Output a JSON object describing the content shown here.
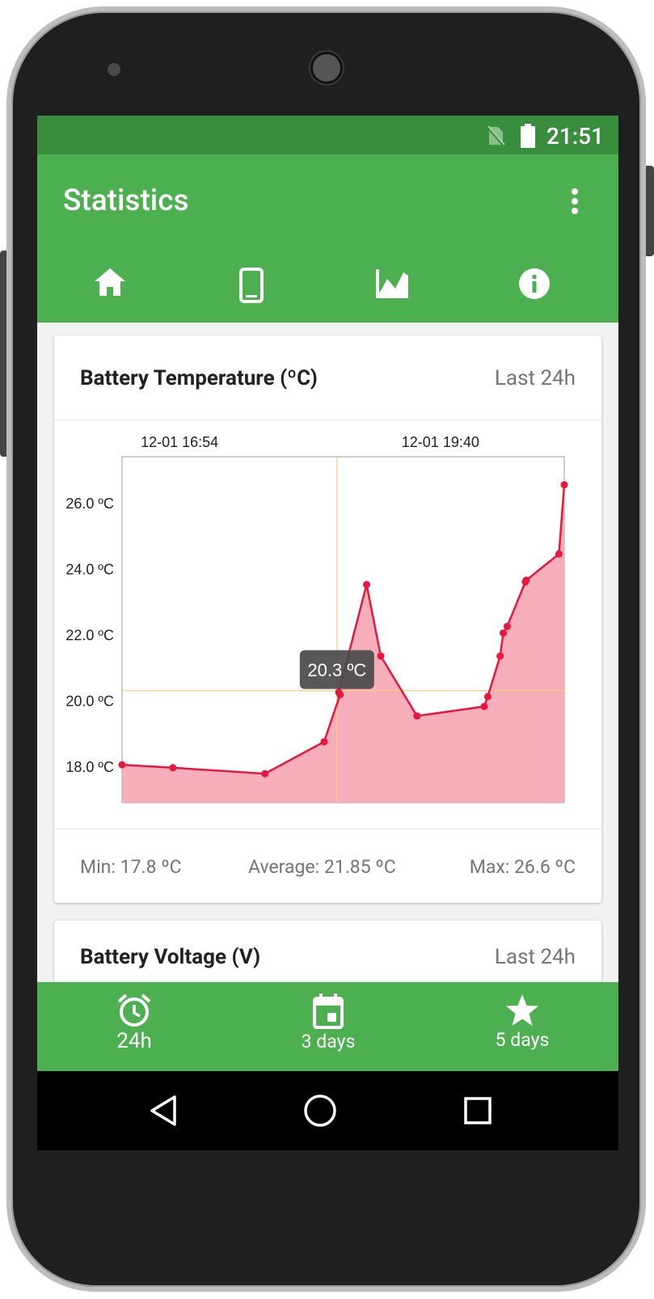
{
  "status_bar": {
    "time": "21:51",
    "sim_icon": "no-sim-icon",
    "battery_icon": "battery-full-icon"
  },
  "app_bar": {
    "title": "Statistics",
    "overflow_icon": "more-vert-icon"
  },
  "tabs": [
    {
      "icon": "home-icon",
      "selected": false
    },
    {
      "icon": "phone-icon",
      "selected": false
    },
    {
      "icon": "chart-icon",
      "selected": true
    },
    {
      "icon": "info-icon",
      "selected": false
    }
  ],
  "accent_color": "#ff9800",
  "primary_color": "#4caf50",
  "primary_dark_color": "#388e3c",
  "card": {
    "title": "Battery Temperature (ºC)",
    "range": "Last 24h",
    "min": "Min: 17.8 ºC",
    "average": "Average: 21.85 ºC",
    "max": "Max: 26.6 ºC"
  },
  "chart_data": {
    "type": "area",
    "title": "",
    "y_ticks": [
      "18.0 ºC",
      "20.0 ºC",
      "22.0 ºC",
      "24.0 ºC",
      "26.0 ºC"
    ],
    "y_tick_values": [
      18,
      20,
      22,
      24,
      26
    ],
    "ylim": [
      16.9,
      27.4
    ],
    "top_labels": [
      {
        "text": "12-01 16:54",
        "x": 0.13
      },
      {
        "text": "12-01 19:40",
        "x": 0.72
      }
    ],
    "series": [
      {
        "color": "#e8173c",
        "fill": "#f6aeba",
        "points": [
          [
            0.0,
            18.05
          ],
          [
            0.115,
            17.96
          ],
          [
            0.323,
            17.78
          ],
          [
            0.457,
            18.75
          ],
          [
            0.493,
            20.18
          ],
          [
            0.49,
            20.25
          ],
          [
            0.553,
            23.52
          ],
          [
            0.585,
            21.35
          ],
          [
            0.667,
            19.53
          ],
          [
            0.819,
            19.82
          ],
          [
            0.827,
            20.12
          ],
          [
            0.855,
            21.35
          ],
          [
            0.862,
            22.05
          ],
          [
            0.871,
            22.25
          ],
          [
            0.912,
            23.6
          ],
          [
            0.914,
            23.65
          ],
          [
            0.988,
            24.45
          ],
          [
            1.0,
            26.55
          ]
        ]
      }
    ],
    "crosshair": {
      "x": 0.486,
      "y": 20.3,
      "color": "#ffcc80"
    },
    "tooltip": "20.3 ºC"
  },
  "card2": {
    "title": "Battery Voltage (V)",
    "range": "Last 24h"
  },
  "bottom_nav": [
    {
      "icon": "alarm-icon",
      "label": "24h",
      "active": true
    },
    {
      "icon": "calendar-icon",
      "label": "3 days",
      "active": false
    },
    {
      "icon": "star-icon",
      "label": "5 days",
      "active": false
    }
  ],
  "system_nav": {
    "back": "back-icon",
    "home": "home-circle-icon",
    "recents": "recents-icon"
  }
}
